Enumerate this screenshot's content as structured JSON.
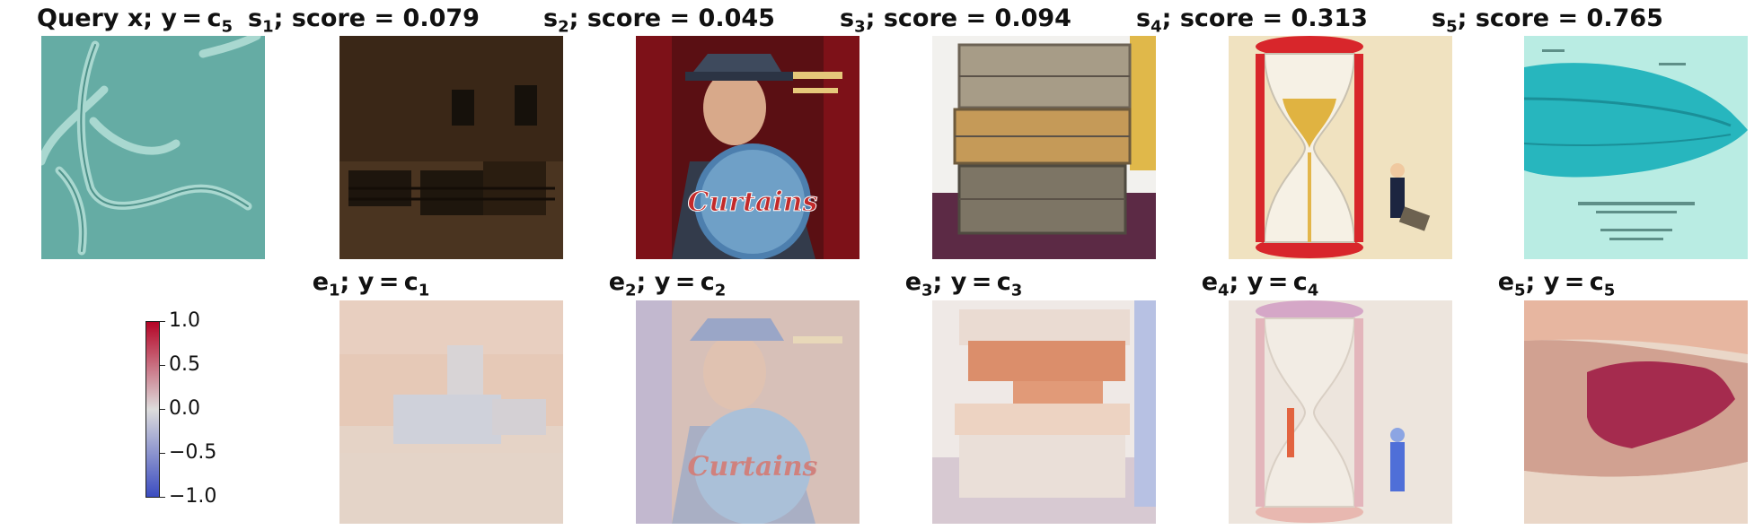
{
  "query": {
    "title_main": "Query x; y = c",
    "title_sub": "5"
  },
  "top_row": [
    {
      "s": "s",
      "idx": "1",
      "label": "; score = 0.079"
    },
    {
      "s": "s",
      "idx": "2",
      "label": "; score = 0.045"
    },
    {
      "s": "s",
      "idx": "3",
      "label": "; score = 0.094"
    },
    {
      "s": "s",
      "idx": "4",
      "label": "; score = 0.313"
    },
    {
      "s": "s",
      "idx": "5",
      "label": "; score = 0.765"
    }
  ],
  "bottom_row": [
    {
      "e": "e",
      "idx": "1",
      "mid": "; y = c",
      "cidx": "1"
    },
    {
      "e": "e",
      "idx": "2",
      "mid": "; y = c",
      "cidx": "2"
    },
    {
      "e": "e",
      "idx": "3",
      "mid": "; y = c",
      "cidx": "3"
    },
    {
      "e": "e",
      "idx": "4",
      "mid": "; y = c",
      "cidx": "4"
    },
    {
      "e": "e",
      "idx": "5",
      "mid": "; y = c",
      "cidx": "5"
    }
  ],
  "poster_text": "Curtains",
  "colorbar": {
    "ticks": [
      "1.0",
      "0.5",
      "0.0",
      "−0.5",
      "−1.0"
    ],
    "colors": {
      "high": "#b40426",
      "mid": "#dddcdc",
      "low": "#3b4cc0"
    }
  }
}
